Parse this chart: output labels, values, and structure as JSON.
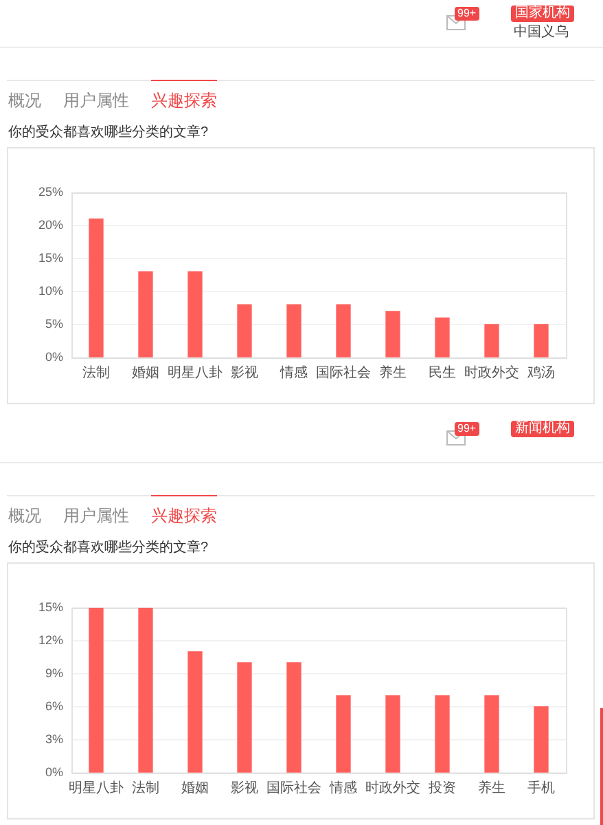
{
  "chart_data": [
    {
      "type": "bar",
      "title": "你的受众都喜欢哪些分类的文章?",
      "annotations": [
        "99+",
        "国家机构",
        "中国义乌",
        "概况",
        "用户属性",
        "兴趣探索"
      ],
      "categories": [
        "法制",
        "婚姻",
        "明星八卦",
        "影视",
        "情感",
        "国际社会",
        "养生",
        "民生",
        "时政外交",
        "鸡汤"
      ],
      "values": [
        21,
        13,
        13,
        8,
        8,
        8,
        7,
        6,
        5,
        5
      ],
      "color": "#ff5f5b",
      "ylim": [
        0,
        25
      ],
      "yticks": [
        {
          "value": 0,
          "label": "0%"
        },
        {
          "value": 5,
          "label": "5%"
        },
        {
          "value": 10,
          "label": "10%"
        },
        {
          "value": 15,
          "label": "15%"
        },
        {
          "value": 20,
          "label": "20%"
        },
        {
          "value": 25,
          "label": "25%"
        }
      ],
      "grid": "y"
    },
    {
      "type": "bar",
      "title": "你的受众都喜欢哪些分类的文章?",
      "annotations": [
        "99+",
        "新闻机构",
        "概况",
        "用户属性",
        "兴趣探索"
      ],
      "categories": [
        "明星八卦",
        "法制",
        "婚姻",
        "影视",
        "国际社会",
        "情感",
        "时政外交",
        "投资",
        "养生",
        "手机"
      ],
      "values": [
        15,
        15,
        11,
        10,
        10,
        7,
        7,
        7,
        7,
        6
      ],
      "color": "#ff5f5b",
      "ylim": [
        0,
        15
      ],
      "yticks": [
        {
          "value": 0,
          "label": "0%"
        },
        {
          "value": 3,
          "label": "3%"
        },
        {
          "value": 6,
          "label": "6%"
        },
        {
          "value": 9,
          "label": "9%"
        },
        {
          "value": 12,
          "label": "12%"
        },
        {
          "value": 15,
          "label": "15%"
        }
      ],
      "grid": "y"
    }
  ]
}
